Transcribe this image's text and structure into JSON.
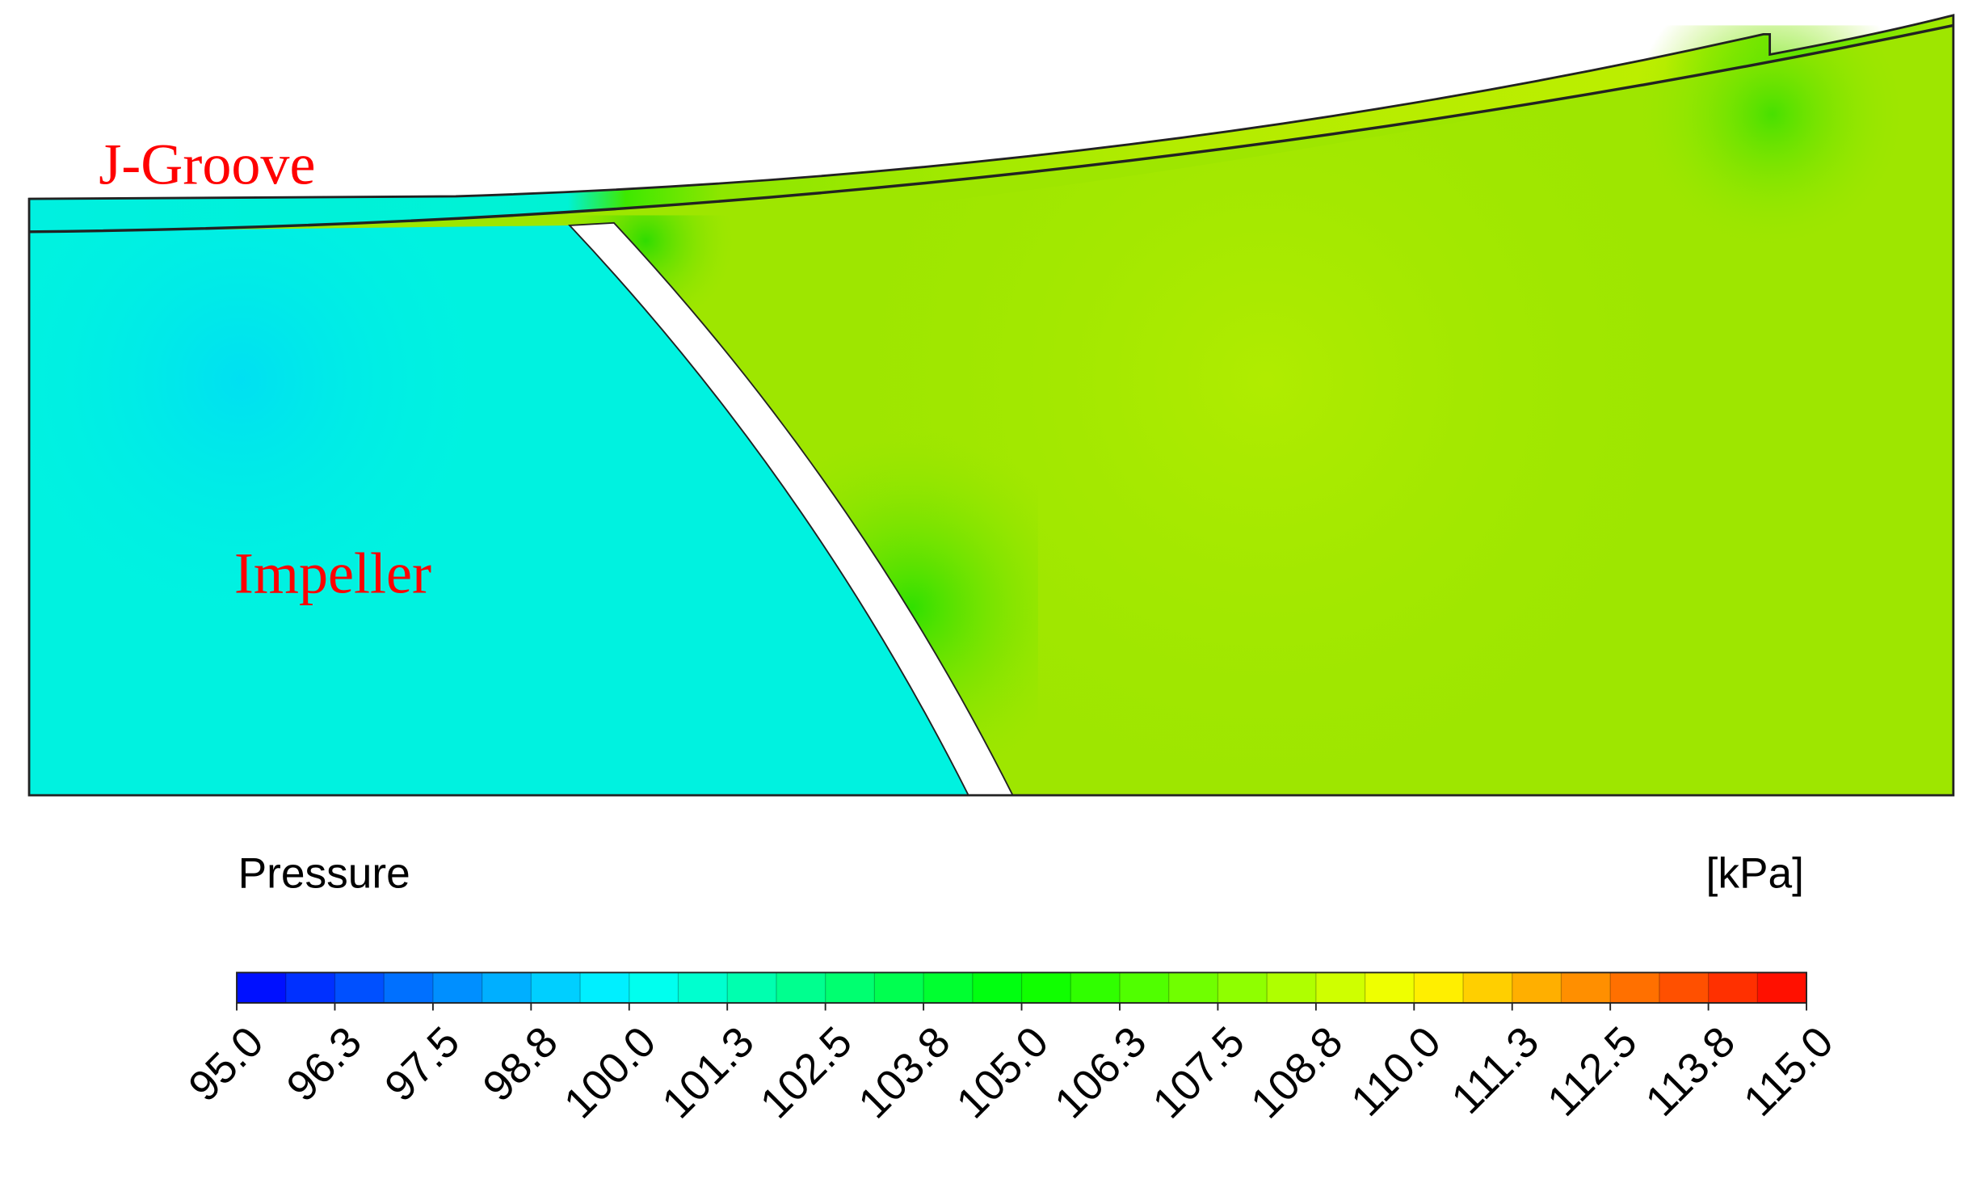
{
  "chart_data": {
    "type": "contour",
    "title": "Pressure",
    "unit_label": "[kPa]",
    "annotations": [
      "J-Groove",
      "Impeller"
    ],
    "annotation_color": "#ff0000",
    "colorbar": {
      "clim": [
        95,
        115
      ],
      "levels": 32,
      "colormap": [
        "#0000ff",
        "#00ffff",
        "#00ff00",
        "#ffff00",
        "#ff0000"
      ],
      "ticks": [
        {
          "value": 95,
          "label": "95.0"
        },
        {
          "value": 96.25,
          "label": "96.3"
        },
        {
          "value": 97.5,
          "label": "97.5"
        },
        {
          "value": 98.75,
          "label": "98.8"
        },
        {
          "value": 100,
          "label": "100.0"
        },
        {
          "value": 101.25,
          "label": "101.3"
        },
        {
          "value": 102.5,
          "label": "102.5"
        },
        {
          "value": 103.75,
          "label": "103.8"
        },
        {
          "value": 105,
          "label": "105.0"
        },
        {
          "value": 106.25,
          "label": "106.3"
        },
        {
          "value": 107.5,
          "label": "107.5"
        },
        {
          "value": 108.75,
          "label": "108.8"
        },
        {
          "value": 110,
          "label": "110.0"
        },
        {
          "value": 111.25,
          "label": "111.3"
        },
        {
          "value": 112.5,
          "label": "112.5"
        },
        {
          "value": 113.75,
          "label": "113.8"
        },
        {
          "value": 115,
          "label": "115.0"
        }
      ]
    }
  }
}
